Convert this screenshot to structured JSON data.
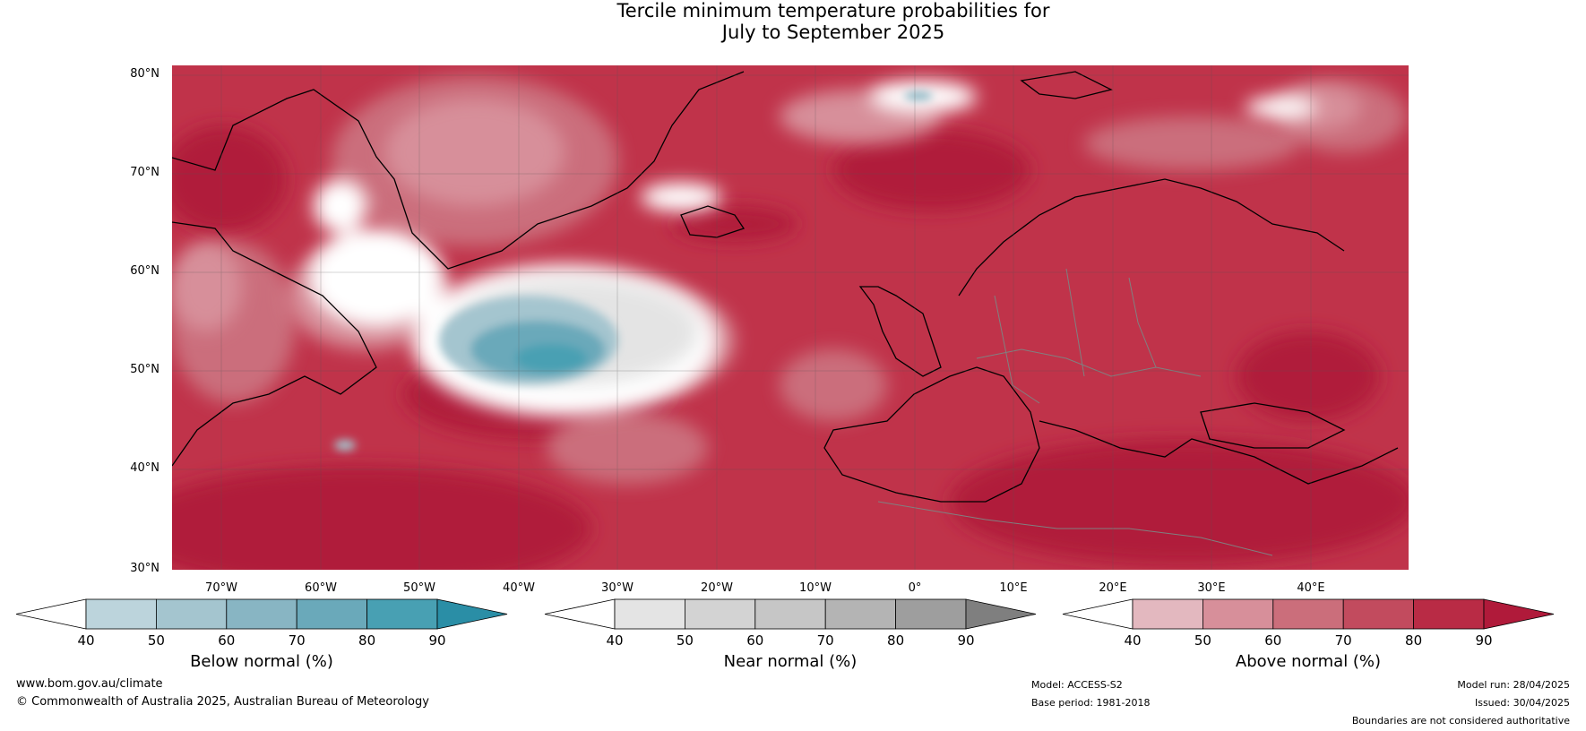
{
  "title": {
    "line1": "Tercile minimum temperature probabilities for",
    "line2": "July to September 2025"
  },
  "map": {
    "lat_labels": [
      "80°N",
      "70°N",
      "60°N",
      "50°N",
      "40°N",
      "30°N"
    ],
    "lon_labels": [
      "70°W",
      "60°W",
      "50°W",
      "40°W",
      "30°W",
      "20°W",
      "10°W",
      "0°",
      "10°E",
      "20°E",
      "30°E",
      "40°E"
    ],
    "background_color": "#c0334a",
    "coastline_color": "#000000",
    "border_color": "#808080"
  },
  "legends": [
    {
      "title": "Below normal (%)",
      "ticks": [
        "40",
        "50",
        "60",
        "70",
        "80",
        "90"
      ],
      "colors": [
        "#ffffff",
        "#bcd4dc",
        "#a4c5cf",
        "#88b5c3",
        "#6aa9ba",
        "#48a0b3",
        "#2a8ea6"
      ]
    },
    {
      "title": "Near normal (%)",
      "ticks": [
        "40",
        "50",
        "60",
        "70",
        "80",
        "90"
      ],
      "colors": [
        "#ffffff",
        "#e4e4e4",
        "#d3d3d3",
        "#c6c6c6",
        "#b4b4b4",
        "#9e9e9e",
        "#7f7f7f"
      ]
    },
    {
      "title": "Above normal (%)",
      "ticks": [
        "40",
        "50",
        "60",
        "70",
        "80",
        "90"
      ],
      "colors": [
        "#ffffff",
        "#e3b8bf",
        "#d78f9a",
        "#cb6e7b",
        "#c24b5e",
        "#b92b45",
        "#b01a3a"
      ]
    }
  ],
  "footer": {
    "website": "www.bom.gov.au/climate",
    "copyright": "© Commonwealth of Australia 2025, Australian Bureau of Meteorology",
    "model": "Model: ACCESS-S2",
    "base_period": "Base period: 1981-2018",
    "model_run": "Model run: 28/04/2025",
    "issued": "Issued: 30/04/2025",
    "disclaimer": "Boundaries are not considered authoritative"
  }
}
